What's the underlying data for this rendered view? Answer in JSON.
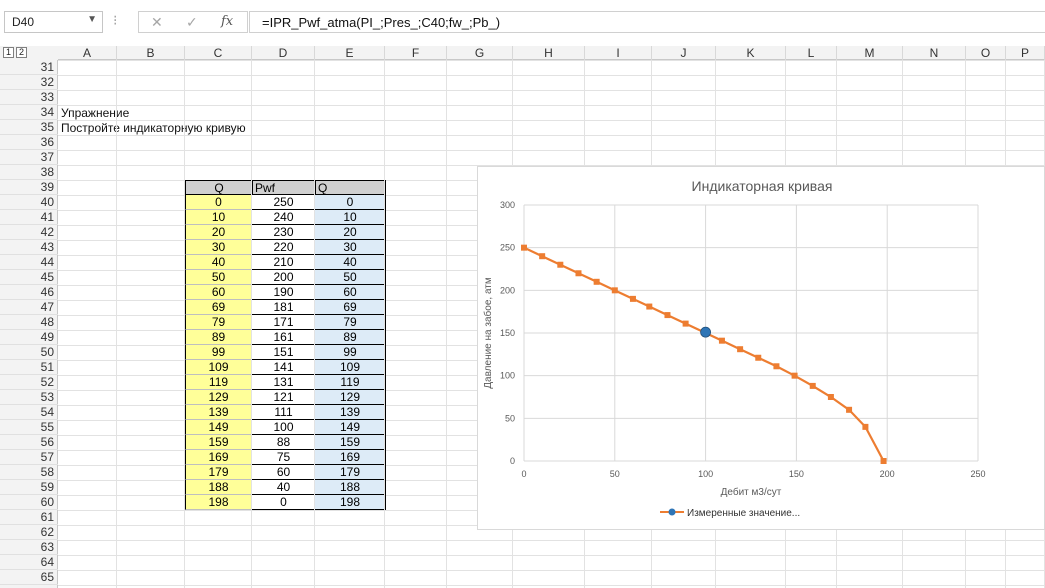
{
  "namebox": {
    "value": "D40"
  },
  "formula_bar": {
    "formula": "=IPR_Pwf_atma(PI_;Pres_;C40;fw_;Pb_)",
    "sep_glyph": "⁝"
  },
  "outline_levels": [
    "1",
    "2"
  ],
  "columns": [
    "A",
    "B",
    "C",
    "D",
    "E",
    "F",
    "G",
    "H",
    "I",
    "J",
    "K",
    "L",
    "M",
    "N",
    "O",
    "P"
  ],
  "rows": [
    "31",
    "32",
    "33",
    "34",
    "35",
    "36",
    "37",
    "38",
    "39",
    "40",
    "41",
    "42",
    "43",
    "44",
    "45",
    "46",
    "47",
    "48",
    "49",
    "50",
    "51",
    "52",
    "53",
    "54",
    "55",
    "56",
    "57",
    "58",
    "59",
    "60",
    "61",
    "62",
    "63",
    "64",
    "65"
  ],
  "sheet_text": {
    "exercise_title": "Упражнение",
    "exercise_task": "Постройте индикаторную кривую"
  },
  "table": {
    "headers": [
      "Q",
      "Pwf",
      "Q"
    ],
    "rows": [
      [
        "0",
        "250",
        "0"
      ],
      [
        "10",
        "240",
        "10"
      ],
      [
        "20",
        "230",
        "20"
      ],
      [
        "30",
        "220",
        "30"
      ],
      [
        "40",
        "210",
        "40"
      ],
      [
        "50",
        "200",
        "50"
      ],
      [
        "60",
        "190",
        "60"
      ],
      [
        "69",
        "181",
        "69"
      ],
      [
        "79",
        "171",
        "79"
      ],
      [
        "89",
        "161",
        "89"
      ],
      [
        "99",
        "151",
        "99"
      ],
      [
        "109",
        "141",
        "109"
      ],
      [
        "119",
        "131",
        "119"
      ],
      [
        "129",
        "121",
        "129"
      ],
      [
        "139",
        "111",
        "139"
      ],
      [
        "149",
        "100",
        "149"
      ],
      [
        "159",
        "88",
        "159"
      ],
      [
        "169",
        "75",
        "169"
      ],
      [
        "179",
        "60",
        "179"
      ],
      [
        "188",
        "40",
        "188"
      ],
      [
        "198",
        "0",
        "198"
      ]
    ]
  },
  "colors": {
    "series": "#ed7d31",
    "highlight_point": "#2e75b6",
    "input_cells": "#ffff99",
    "output_cells": "#ddebf7"
  },
  "chart_data": {
    "type": "line",
    "title": "Индикаторная кривая",
    "xlabel": "Дебит  м3/сут",
    "ylabel": "Давление на забое, атм",
    "xlim": [
      0,
      250
    ],
    "ylim": [
      0,
      300
    ],
    "xticks": [
      "0",
      "50",
      "100",
      "150",
      "200",
      "250"
    ],
    "yticks": [
      "0",
      "50",
      "100",
      "150",
      "200",
      "250",
      "300"
    ],
    "grid": true,
    "legend_position": "bottom",
    "series": [
      {
        "name": "",
        "marker": "square",
        "x": [
          0,
          10,
          20,
          30,
          40,
          50,
          60,
          69,
          79,
          89,
          99,
          109,
          119,
          129,
          139,
          149,
          159,
          169,
          179,
          188,
          198
        ],
        "y": [
          250,
          240,
          230,
          220,
          210,
          200,
          190,
          181,
          171,
          161,
          151,
          141,
          131,
          121,
          111,
          100,
          88,
          75,
          60,
          40,
          0
        ]
      },
      {
        "name": "Измеренные значение...",
        "marker": "circle",
        "x": [
          100
        ],
        "y": [
          151
        ]
      }
    ]
  }
}
